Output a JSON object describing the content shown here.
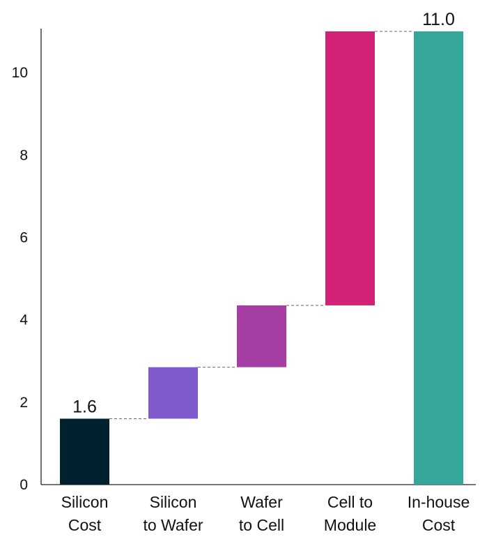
{
  "chart_data": {
    "type": "waterfall",
    "categories": [
      [
        "Silicon",
        "Cost"
      ],
      [
        "Silicon",
        "to Wafer"
      ],
      [
        "Wafer",
        "to Cell"
      ],
      [
        "Cell to",
        "Module"
      ],
      [
        "In-house",
        "Cost"
      ]
    ],
    "segments": [
      {
        "start": 0.0,
        "end": 1.6,
        "kind": "total"
      },
      {
        "start": 1.6,
        "end": 2.85,
        "kind": "increment"
      },
      {
        "start": 2.85,
        "end": 4.35,
        "kind": "increment"
      },
      {
        "start": 4.35,
        "end": 11.0,
        "kind": "increment"
      },
      {
        "start": 0.0,
        "end": 11.0,
        "kind": "total"
      }
    ],
    "data_labels": [
      "1.6",
      null,
      null,
      null,
      "11.0"
    ],
    "colors": [
      "#02212f",
      "#7f5acd",
      "#a63fa3",
      "#d22277",
      "#35a69a"
    ],
    "ylim": [
      0,
      11
    ],
    "yticks": [
      0,
      2,
      4,
      6,
      8,
      10
    ],
    "title": "",
    "xlabel": "",
    "ylabel": "",
    "grid": false,
    "connectors": "dashed"
  }
}
